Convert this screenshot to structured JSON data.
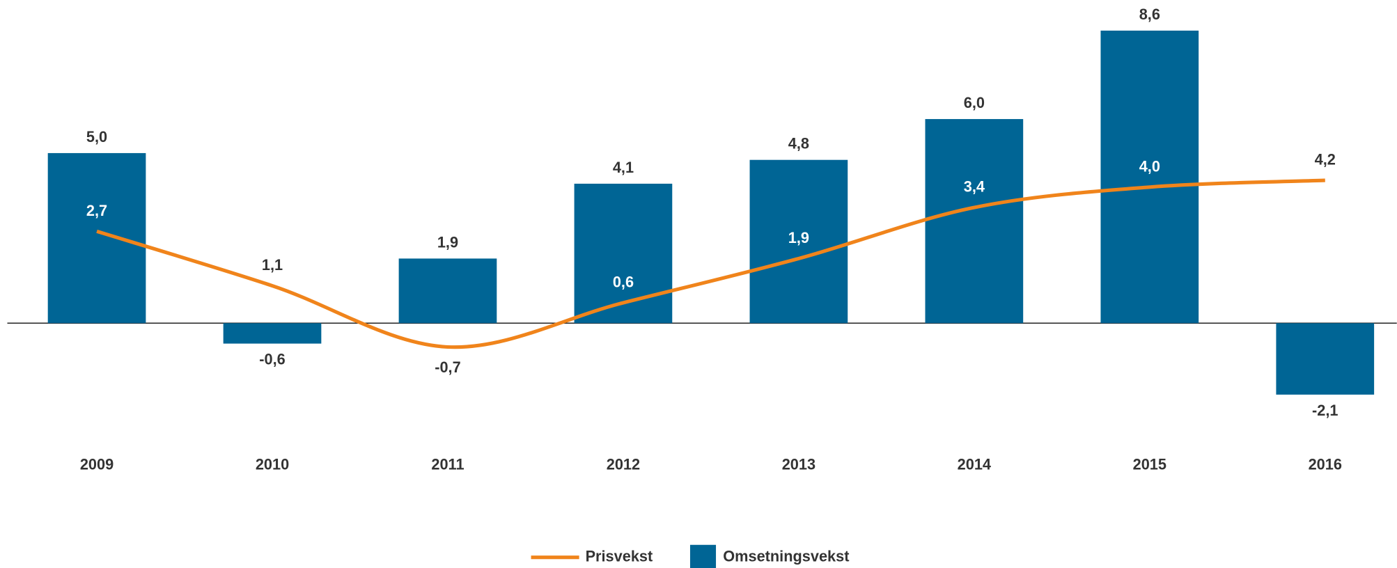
{
  "chart_data": {
    "type": "bar_line",
    "categories": [
      "2009",
      "2010",
      "2011",
      "2012",
      "2013",
      "2014",
      "2015",
      "2016"
    ],
    "series": [
      {
        "name": "Omsetningsvekst",
        "type": "bar",
        "color": "#006595",
        "values": [
          5.0,
          -0.6,
          1.9,
          4.1,
          4.8,
          6.0,
          8.6,
          -2.1
        ],
        "value_labels": [
          "5,0",
          "-0,6",
          "1,9",
          "4,1",
          "4,8",
          "6,0",
          "8,6",
          "-2,1"
        ]
      },
      {
        "name": "Prisvekst",
        "type": "line",
        "color": "#f0841b",
        "values": [
          2.7,
          1.1,
          -0.7,
          0.6,
          1.9,
          3.4,
          4.0,
          4.2
        ],
        "value_labels": [
          "2,7",
          "1,1",
          "-0,7",
          "0,6",
          "1,9",
          "3,4",
          "4,0",
          "4,2"
        ]
      }
    ],
    "ylim": [
      -2.8,
      9.5
    ],
    "legend": "bottom"
  }
}
